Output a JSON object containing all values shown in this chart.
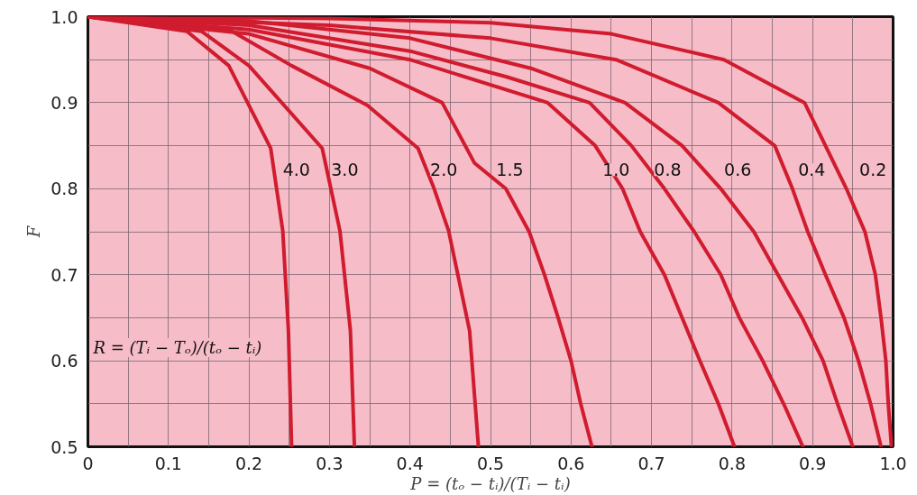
{
  "chart_data": {
    "type": "line",
    "xlabel": "P = (tₒ − tᵢ)/(Tᵢ − tᵢ)",
    "ylabel": "F",
    "xlim": [
      0,
      1.0
    ],
    "ylim": [
      0.5,
      1.0
    ],
    "xticks": [
      0,
      0.1,
      0.2,
      0.3,
      0.4,
      0.5,
      0.6,
      0.7,
      0.8,
      0.9,
      {
        "value": 1.0,
        "label": "1.0"
      }
    ],
    "yticks": [
      {
        "value": 0.5,
        "label": "0.5"
      },
      0.6,
      0.7,
      0.8,
      0.9,
      {
        "value": 1.0,
        "label": "1.0"
      }
    ],
    "grid": true,
    "line_style": "solid",
    "marker": "none",
    "series": [
      {
        "color": "#d01c2e",
        "x": [
          0,
          0.123,
          0.175,
          0.227,
          0.242,
          0.249,
          0.253
        ],
        "values": [
          1.0,
          0.983,
          0.943,
          0.847,
          0.751,
          0.635,
          0.5
        ]
      },
      {
        "color": "#d01c2e",
        "x": [
          0,
          0.141,
          0.2,
          0.291,
          0.313,
          0.326,
          0.331
        ],
        "values": [
          1.0,
          0.983,
          0.943,
          0.847,
          0.751,
          0.635,
          0.5
        ]
      },
      {
        "color": "#d01c2e",
        "x": [
          0,
          0.179,
          0.253,
          0.347,
          0.41,
          0.43,
          0.448,
          0.474,
          0.485
        ],
        "values": [
          1.0,
          0.983,
          0.943,
          0.897,
          0.847,
          0.8,
          0.751,
          0.635,
          0.5
        ]
      },
      {
        "color": "#d01c2e",
        "x": [
          0,
          0.2,
          0.35,
          0.44,
          0.48,
          0.519,
          0.548,
          0.567,
          0.584,
          0.6,
          0.612,
          0.626
        ],
        "values": [
          1.0,
          0.98,
          0.94,
          0.9,
          0.83,
          0.8,
          0.75,
          0.7,
          0.65,
          0.6,
          0.55,
          0.5
        ]
      },
      {
        "color": "#d01c2e",
        "x": [
          0,
          0.2,
          0.4,
          0.571,
          0.63,
          0.664,
          0.686,
          0.716,
          0.738,
          0.76,
          0.783,
          0.803
        ],
        "values": [
          1.0,
          0.985,
          0.95,
          0.9,
          0.85,
          0.8,
          0.75,
          0.7,
          0.65,
          0.6,
          0.55,
          0.5
        ]
      },
      {
        "color": "#d01c2e",
        "x": [
          0,
          0.2,
          0.4,
          0.52,
          0.623,
          0.675,
          0.716,
          0.753,
          0.786,
          0.809,
          0.838,
          0.864,
          0.888
        ],
        "values": [
          1.0,
          0.99,
          0.96,
          0.93,
          0.9,
          0.85,
          0.8,
          0.75,
          0.7,
          0.65,
          0.6,
          0.55,
          0.5
        ]
      },
      {
        "color": "#d01c2e",
        "x": [
          0,
          0.2,
          0.4,
          0.55,
          0.667,
          0.738,
          0.786,
          0.827,
          0.857,
          0.887,
          0.913,
          0.931,
          0.95
        ],
        "values": [
          1.0,
          0.995,
          0.975,
          0.94,
          0.9,
          0.85,
          0.8,
          0.75,
          0.7,
          0.65,
          0.6,
          0.55,
          0.5
        ]
      },
      {
        "color": "#d01c2e",
        "x": [
          0,
          0.3,
          0.5,
          0.656,
          0.783,
          0.853,
          0.875,
          0.894,
          0.916,
          0.939,
          0.957,
          0.972,
          0.985
        ],
        "values": [
          1.0,
          0.99,
          0.975,
          0.95,
          0.9,
          0.85,
          0.8,
          0.75,
          0.7,
          0.65,
          0.6,
          0.55,
          0.5
        ]
      },
      {
        "color": "#d01c2e",
        "x": [
          0,
          0.3,
          0.5,
          0.65,
          0.79,
          0.89,
          0.916,
          0.942,
          0.965,
          0.978,
          0.985,
          0.991,
          0.994,
          0.998
        ],
        "values": [
          1.0,
          0.998,
          0.993,
          0.98,
          0.95,
          0.9,
          0.85,
          0.8,
          0.75,
          0.7,
          0.65,
          0.6,
          0.55,
          0.5
        ]
      }
    ],
    "annotations": [
      {
        "text": "4.0",
        "x": 0.259,
        "y": 0.822
      },
      {
        "text": "3.0",
        "x": 0.319,
        "y": 0.822
      },
      {
        "text": "2.0",
        "x": 0.442,
        "y": 0.822
      },
      {
        "text": "1.5",
        "x": 0.524,
        "y": 0.822
      },
      {
        "text": "1.0",
        "x": 0.656,
        "y": 0.822
      },
      {
        "text": "0.8",
        "x": 0.72,
        "y": 0.822
      },
      {
        "text": "0.6",
        "x": 0.807,
        "y": 0.822
      },
      {
        "text": "0.4",
        "x": 0.899,
        "y": 0.822
      },
      {
        "text": "0.2",
        "x": 0.975,
        "y": 0.822
      },
      "R = (Tᵢ − Tₒ)/(tₒ − tᵢ)"
    ]
  }
}
